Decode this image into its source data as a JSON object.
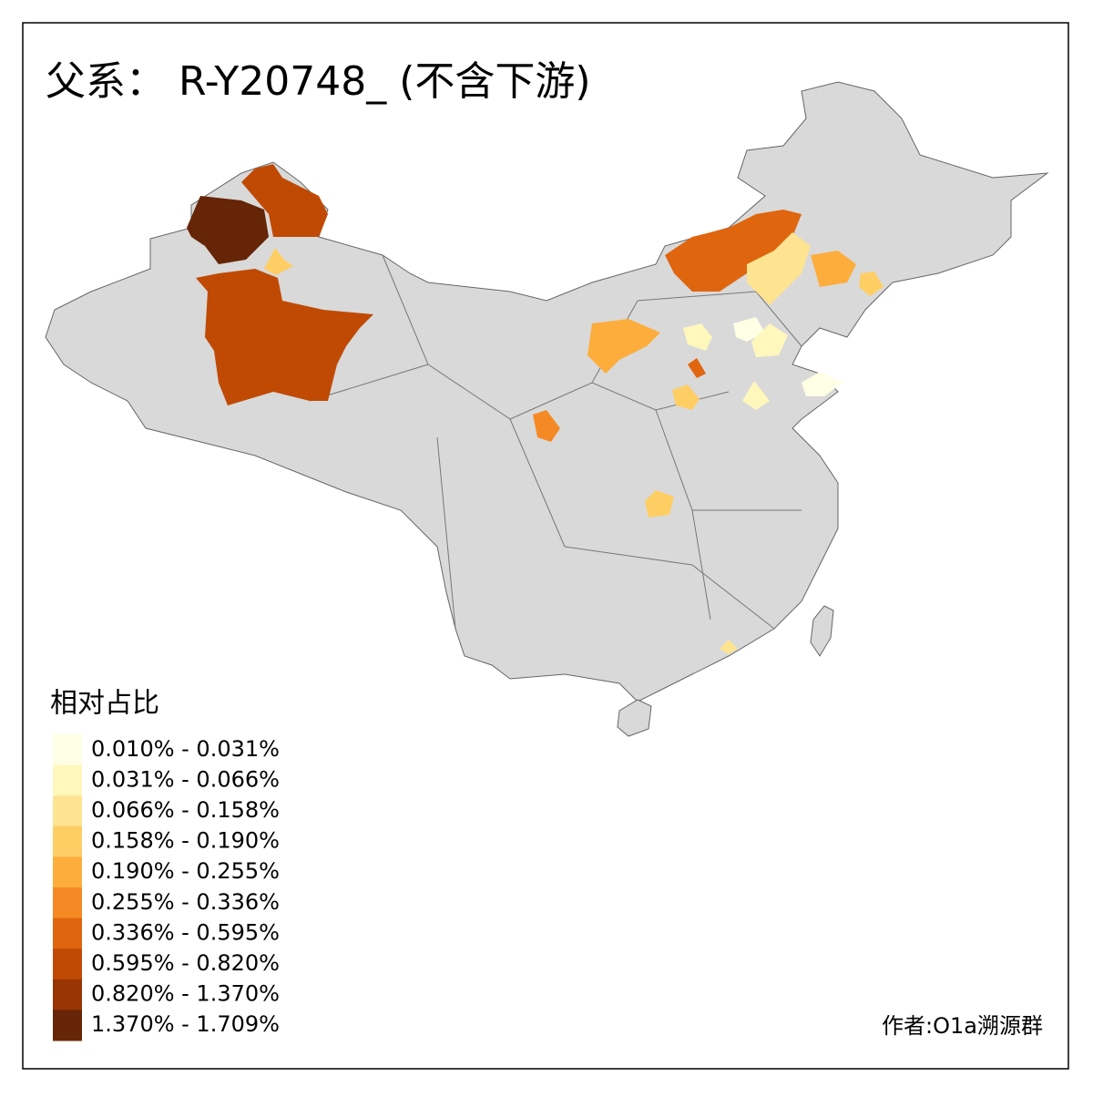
{
  "title": "父系： R-Y20748_ (不含下游)",
  "legend": {
    "title": "相对占比",
    "items": [
      {
        "label": "0.010% - 0.031%",
        "color": "#ffffe5"
      },
      {
        "label": "0.031% - 0.066%",
        "color": "#fff7bc"
      },
      {
        "label": "0.066% - 0.158%",
        "color": "#fee391"
      },
      {
        "label": "0.158% - 0.190%",
        "color": "#fece65"
      },
      {
        "label": "0.190% - 0.255%",
        "color": "#fdad3c"
      },
      {
        "label": "0.255% - 0.336%",
        "color": "#f58a24"
      },
      {
        "label": "0.336% - 0.595%",
        "color": "#e0650f"
      },
      {
        "label": "0.595% - 0.820%",
        "color": "#c04a04"
      },
      {
        "label": "0.820% - 1.370%",
        "color": "#993404"
      },
      {
        "label": "1.370% - 1.709%",
        "color": "#662506"
      }
    ]
  },
  "credit": "作者:O1a溯源群"
}
